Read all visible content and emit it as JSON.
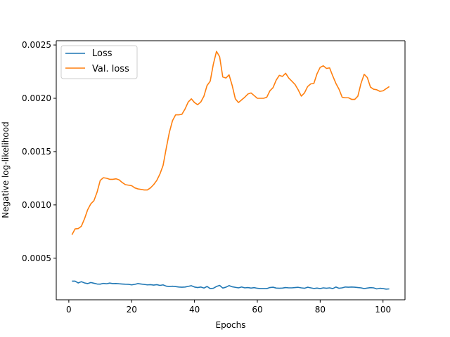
{
  "chart_data": {
    "type": "line",
    "xlabel": "Epochs",
    "ylabel": "Negative log-likelihood",
    "xlim": [
      -4,
      107
    ],
    "ylim": [
      0.00011,
      0.00254
    ],
    "xticks": [
      0,
      20,
      40,
      60,
      80,
      100
    ],
    "yticks": [
      0.0005,
      0.001,
      0.0015,
      0.002,
      0.0025
    ],
    "xtick_labels": [
      "0",
      "20",
      "40",
      "60",
      "80",
      "100"
    ],
    "ytick_labels": [
      "0.0005",
      "0.0010",
      "0.0015",
      "0.0020",
      "0.0025"
    ],
    "grid": false,
    "legend_position": "upper-left",
    "series": [
      {
        "name": "Loss",
        "color": "#1f77b4",
        "x": [
          1,
          2,
          3,
          4,
          5,
          6,
          7,
          8,
          9,
          10,
          11,
          12,
          13,
          14,
          15,
          16,
          17,
          18,
          19,
          20,
          21,
          22,
          23,
          24,
          25,
          26,
          27,
          28,
          29,
          30,
          31,
          32,
          33,
          34,
          35,
          36,
          37,
          38,
          39,
          40,
          41,
          42,
          43,
          44,
          45,
          46,
          47,
          48,
          49,
          50,
          51,
          52,
          53,
          54,
          55,
          56,
          57,
          58,
          59,
          60,
          61,
          62,
          63,
          64,
          65,
          66,
          67,
          68,
          69,
          70,
          71,
          72,
          73,
          74,
          75,
          76,
          77,
          78,
          79,
          80,
          81,
          82,
          83,
          84,
          85,
          86,
          87,
          88,
          89,
          90,
          91,
          92,
          93,
          94,
          95,
          96,
          97,
          98,
          99,
          100,
          101,
          102
        ],
        "y": [
          0.000285,
          0.000285,
          0.000268,
          0.00028,
          0.000268,
          0.000262,
          0.000272,
          0.000265,
          0.000258,
          0.000257,
          0.000264,
          0.00026,
          0.000267,
          0.000262,
          0.000263,
          0.00026,
          0.000258,
          0.000256,
          0.000255,
          0.00025,
          0.000255,
          0.000262,
          0.000258,
          0.000254,
          0.00025,
          0.000252,
          0.000248,
          0.000252,
          0.000245,
          0.00025,
          0.000238,
          0.000235,
          0.000237,
          0.000234,
          0.00023,
          0.000228,
          0.00023,
          0.000236,
          0.000242,
          0.00023,
          0.000225,
          0.00023,
          0.00022,
          0.000235,
          0.000215,
          0.000218,
          0.000235,
          0.000245,
          0.00022,
          0.000228,
          0.000243,
          0.000232,
          0.000227,
          0.000222,
          0.00023,
          0.000222,
          0.000225,
          0.00022,
          0.000224,
          0.000218,
          0.000215,
          0.000215,
          0.000215,
          0.000225,
          0.000228,
          0.00022,
          0.000218,
          0.00022,
          0.000225,
          0.000222,
          0.000222,
          0.000225,
          0.000227,
          0.000222,
          0.000218,
          0.000228,
          0.000222,
          0.000216,
          0.00022,
          0.000215,
          0.000222,
          0.000218,
          0.000222,
          0.000215,
          0.00023,
          0.000218,
          0.000222,
          0.00023,
          0.000228,
          0.00023,
          0.000228,
          0.000225,
          0.000222,
          0.000215,
          0.00022,
          0.000224,
          0.000222,
          0.000212,
          0.000218,
          0.000215,
          0.00021,
          0.000212
        ]
      },
      {
        "name": "Val. loss",
        "color": "#ff7f0e",
        "x": [
          1,
          2,
          3,
          4,
          5,
          6,
          7,
          8,
          9,
          10,
          11,
          12,
          13,
          14,
          15,
          16,
          17,
          18,
          19,
          20,
          21,
          22,
          23,
          24,
          25,
          26,
          27,
          28,
          29,
          30,
          31,
          32,
          33,
          34,
          35,
          36,
          37,
          38,
          39,
          40,
          41,
          42,
          43,
          44,
          45,
          46,
          47,
          48,
          49,
          50,
          51,
          52,
          53,
          54,
          55,
          56,
          57,
          58,
          59,
          60,
          61,
          62,
          63,
          64,
          65,
          66,
          67,
          68,
          69,
          70,
          71,
          72,
          73,
          74,
          75,
          76,
          77,
          78,
          79,
          80,
          81,
          82,
          83,
          84,
          85,
          86,
          87,
          88,
          89,
          90,
          91,
          92,
          93,
          94,
          95,
          96,
          97,
          98,
          99,
          100,
          101,
          102
        ],
        "y": [
          0.00072,
          0.000775,
          0.000778,
          0.0008,
          0.00087,
          0.000955,
          0.00101,
          0.00104,
          0.00112,
          0.00123,
          0.001255,
          0.00125,
          0.00124,
          0.00124,
          0.001245,
          0.001235,
          0.00121,
          0.00119,
          0.001185,
          0.00118,
          0.00116,
          0.00115,
          0.001145,
          0.00114,
          0.00114,
          0.00116,
          0.00119,
          0.00123,
          0.00129,
          0.00137,
          0.00153,
          0.00168,
          0.00179,
          0.001845,
          0.001845,
          0.00185,
          0.0019,
          0.001965,
          0.001995,
          0.00196,
          0.00194,
          0.001965,
          0.00202,
          0.00212,
          0.00216,
          0.00232,
          0.00244,
          0.00239,
          0.0022,
          0.00219,
          0.00222,
          0.00212,
          0.001995,
          0.00196,
          0.001985,
          0.00201,
          0.00204,
          0.00205,
          0.002025,
          0.002,
          0.002,
          0.002,
          0.00201,
          0.00207,
          0.0021,
          0.00217,
          0.002215,
          0.002205,
          0.002235,
          0.00219,
          0.00216,
          0.00213,
          0.00208,
          0.00202,
          0.00205,
          0.00211,
          0.002135,
          0.00214,
          0.00223,
          0.00229,
          0.002305,
          0.00228,
          0.002285,
          0.00221,
          0.00214,
          0.002085,
          0.00201,
          0.002005,
          0.002005,
          0.00199,
          0.00199,
          0.00202,
          0.00214,
          0.002225,
          0.002195,
          0.002105,
          0.002085,
          0.00208,
          0.002065,
          0.00207,
          0.00209,
          0.00211
        ]
      }
    ]
  }
}
